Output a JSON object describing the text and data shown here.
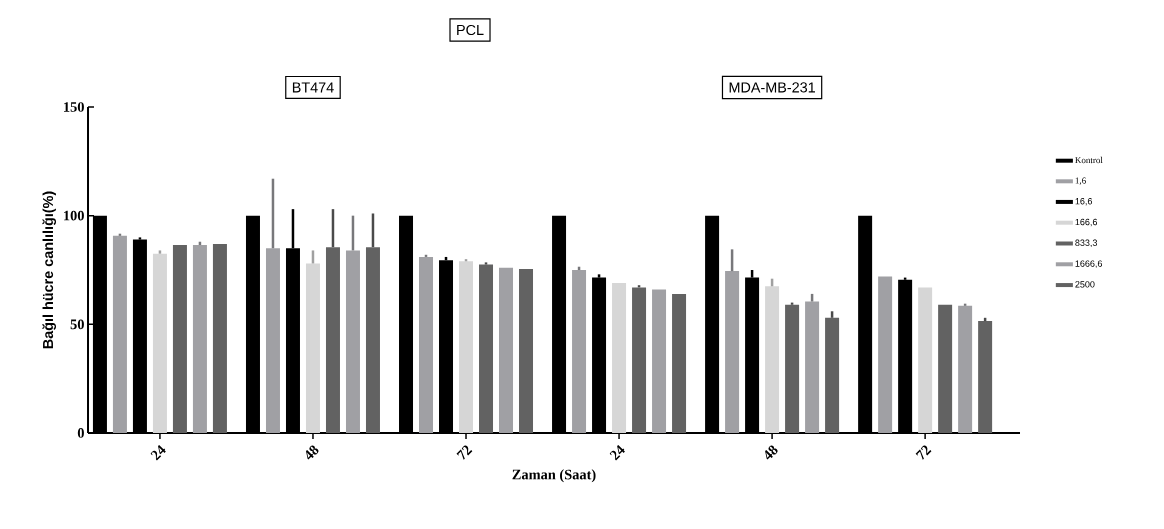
{
  "chart_data": {
    "type": "bar",
    "title": "PCL",
    "xlabel": "Zaman (Saat)",
    "ylabel": "Bağıl hücre canlılığı(%)",
    "categories": [
      "24",
      "48",
      "72",
      "24",
      "48",
      "72"
    ],
    "series": [
      {
        "name": "Kontrol",
        "color": "#000000",
        "values": [
          100,
          100,
          100,
          100,
          100,
          100
        ]
      },
      {
        "name": "1,6",
        "color": "#a0a0a4",
        "values": [
          90.7,
          85,
          81,
          75,
          74.5,
          72
        ],
        "errors": [
          [
            90.7,
            91.7
          ],
          [
            85,
            117
          ],
          [
            81,
            82
          ],
          [
            75,
            76.5
          ],
          [
            74.5,
            84.5
          ],
          null
        ]
      },
      {
        "name": "16,6",
        "color": "#000000",
        "values": [
          89,
          85,
          79.5,
          71.5,
          71.5,
          70.5
        ],
        "errors": [
          [
            89,
            90
          ],
          [
            85,
            103
          ],
          [
            79.5,
            81
          ],
          [
            71.5,
            73
          ],
          [
            71.5,
            75
          ],
          [
            70.5,
            71.5
          ]
        ]
      },
      {
        "name": "166,6",
        "color": "#d6d6d6",
        "values": [
          82.5,
          78,
          79,
          69,
          67.5,
          67
        ],
        "errors": [
          [
            82.5,
            84
          ],
          [
            78,
            84
          ],
          [
            79,
            80
          ],
          null,
          [
            67.5,
            71
          ],
          null
        ]
      },
      {
        "name": "833,3",
        "color": "#626262",
        "values": [
          86.5,
          85.5,
          77.5,
          67,
          59,
          59
        ],
        "errors": [
          null,
          [
            85.5,
            103
          ],
          [
            77.5,
            78.5
          ],
          [
            67,
            68
          ],
          [
            59,
            60
          ],
          null
        ]
      },
      {
        "name": "1666,6",
        "color": "#a0a0a4",
        "values": [
          86.5,
          84,
          76,
          66,
          60.5,
          58.5
        ],
        "errors": [
          [
            86.5,
            88
          ],
          [
            84,
            100
          ],
          null,
          null,
          [
            60.5,
            64
          ],
          [
            58.5,
            59.5
          ]
        ]
      },
      {
        "name": "2500",
        "color": "#626262",
        "values": [
          87,
          85.5,
          75.5,
          64,
          53,
          51.5
        ],
        "errors": [
          null,
          [
            85.5,
            101
          ],
          null,
          null,
          [
            53,
            56
          ],
          [
            51.5,
            53
          ]
        ]
      }
    ],
    "ylim": [
      0,
      150
    ],
    "yticks": [
      0,
      50,
      100,
      150
    ],
    "legend": "right",
    "annotations": [
      "BT474",
      "MDA-MB-231"
    ]
  }
}
